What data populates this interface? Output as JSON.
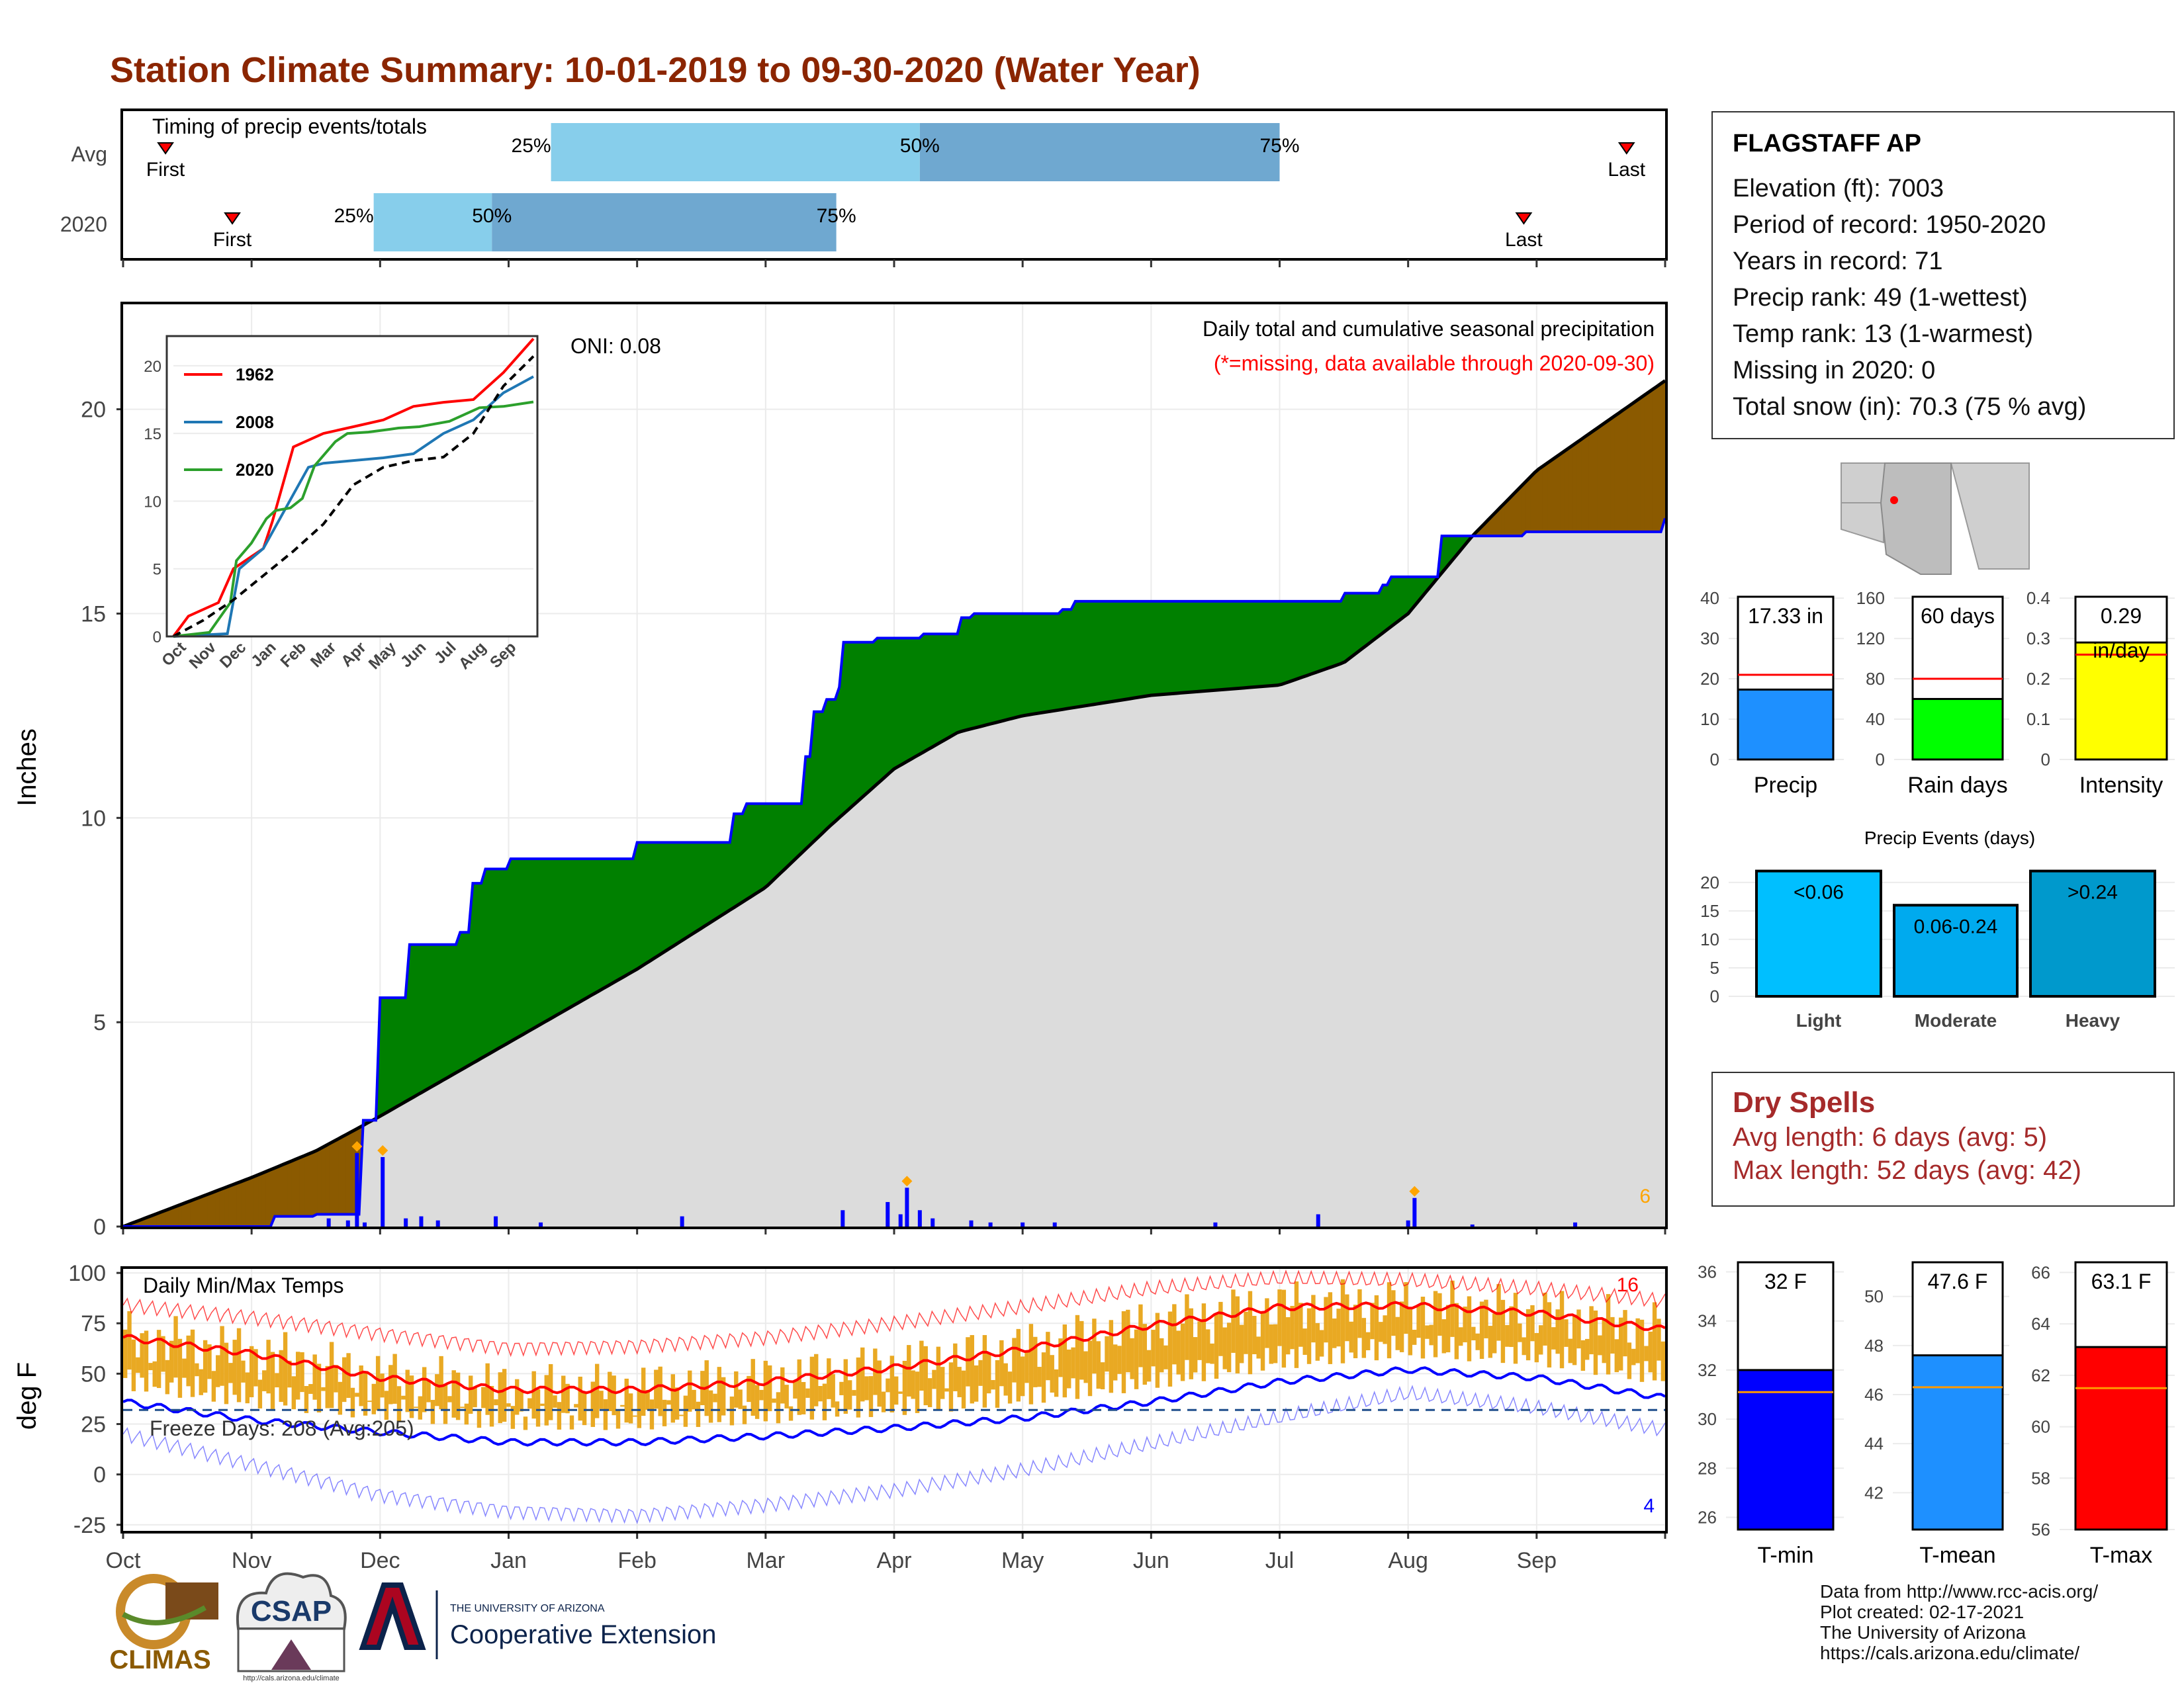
{
  "title": "Station Climate Summary: 10-01-2019 to 09-30-2020 (Water Year)",
  "colors": {
    "title": "#8b2500",
    "brown": "#8b5a00",
    "green": "#008000",
    "grey": "#dcdcdc",
    "blue_line": "#0000ff",
    "orange": "#ffa500",
    "red": "#ff0000",
    "bar_orange": "#e9a923"
  },
  "timing": {
    "label": "Timing of precip events/totals",
    "rows": [
      {
        "name": "Avg",
        "first_label": "First",
        "last_label": "Last",
        "first_month": 0.33,
        "last_month": 11.7,
        "p25": 3.33,
        "p50": 6.2,
        "p75": 9.0,
        "p25_label": "25%",
        "p50_label": "50%",
        "p75_label": "75%"
      },
      {
        "name": "2020",
        "first_label": "First",
        "last_label": "Last",
        "first_month": 0.85,
        "last_month": 10.9,
        "p25": 1.95,
        "p50": 2.87,
        "p75": 5.55,
        "p25_label": "25%",
        "p50_label": "50%",
        "p75_label": "75%"
      }
    ]
  },
  "chart_data": [
    {
      "type": "area",
      "title": "Daily total and cumulative seasonal precipitation",
      "subtitle": "(*=missing, data available through 2020-09-30)",
      "ylabel": "Inches",
      "ylim": [
        0,
        22.6
      ],
      "yticks": [
        0,
        5,
        10,
        15,
        20
      ],
      "xticks": [
        "Oct",
        "Nov",
        "Dec",
        "Jan",
        "Feb",
        "Mar",
        "Apr",
        "May",
        "Jun",
        "Jul",
        "Aug",
        "Sep"
      ],
      "annotation": "ONI: 0.08",
      "corner_count": "6",
      "series": [
        {
          "name": "",
          "kind": "average_cumulative",
          "x_month": [
            0,
            0.5,
            1,
            1.5,
            2,
            3,
            4,
            5,
            5.5,
            6,
            6.5,
            7,
            8,
            9,
            9.5,
            10,
            10.5,
            11,
            12
          ],
          "values": [
            0,
            0.6,
            1.2,
            1.85,
            2.7,
            4.5,
            6.3,
            8.3,
            9.8,
            11.2,
            12.1,
            12.5,
            13.0,
            13.25,
            13.8,
            15.0,
            16.9,
            18.5,
            20.7
          ]
        },
        {
          "name": "",
          "kind": "2020_cumulative",
          "x_month": [
            0,
            1.17,
            1.5,
            1.85,
            1.86,
            1.98,
            2.0,
            2.2,
            2.6,
            2.7,
            2.8,
            3.0,
            4.0,
            4.7,
            4.75,
            4.85,
            4.9,
            5.3,
            5.35,
            5.45,
            5.55,
            5.6,
            5.85,
            6.2,
            6.5,
            6.6,
            7.3,
            7.4,
            8.0,
            9.5,
            9.8,
            9.85,
            10.25,
            10.9,
            12
          ],
          "values": [
            0,
            0.25,
            0.3,
            2.0,
            2.6,
            2.9,
            5.6,
            6.9,
            7.2,
            8.4,
            8.75,
            9.0,
            9.4,
            9.4,
            10.1,
            10.35,
            10.35,
            11.5,
            12.6,
            12.9,
            13.2,
            14.3,
            14.4,
            14.5,
            14.9,
            15.0,
            15.1,
            15.3,
            15.3,
            15.5,
            15.7,
            15.9,
            16.9,
            17.0,
            17.33
          ]
        },
        {
          "name": "",
          "kind": "daily_precip",
          "x_month": [
            1.6,
            1.75,
            1.82,
            1.88,
            2.02,
            2.2,
            2.32,
            2.45,
            2.9,
            3.25,
            4.35,
            5.6,
            5.95,
            6.05,
            6.1,
            6.2,
            6.3,
            6.6,
            6.75,
            7.0,
            7.25,
            8.5,
            9.3,
            10.0,
            10.05,
            10.5,
            11.3
          ],
          "values": [
            0.2,
            0.15,
            1.8,
            0.1,
            1.7,
            0.2,
            0.25,
            0.15,
            0.25,
            0.1,
            0.25,
            0.4,
            0.6,
            0.3,
            0.95,
            0.4,
            0.2,
            0.15,
            0.1,
            0.1,
            0.1,
            0.1,
            0.3,
            0.15,
            0.7,
            0.05,
            0.1
          ]
        }
      ]
    },
    {
      "type": "line",
      "title": "",
      "ylim": [
        0,
        22
      ],
      "yticks": [
        0,
        5,
        10,
        15,
        20
      ],
      "xticks": [
        "Oct",
        "Nov",
        "Dec",
        "Jan",
        "Feb",
        "Mar",
        "Apr",
        "May",
        "Jun",
        "Jul",
        "Aug",
        "Sep"
      ],
      "series": [
        {
          "name": "1962",
          "color": "#ff0000",
          "x_month": [
            0,
            0.5,
            1.5,
            2,
            3,
            3.3,
            4,
            5,
            6,
            7,
            8,
            9,
            10,
            11,
            12
          ],
          "values": [
            0,
            1.5,
            2.5,
            5,
            6.5,
            8.5,
            14,
            15,
            15.5,
            16,
            17,
            17.3,
            17.5,
            19.5,
            22
          ]
        },
        {
          "name": "2008",
          "color": "#1f77b4",
          "x_month": [
            0,
            1.8,
            2.2,
            3,
            4,
            4.5,
            5,
            6,
            7,
            8,
            9,
            10,
            11,
            12
          ],
          "values": [
            0,
            0.2,
            5,
            6.5,
            10.5,
            12.5,
            12.8,
            13,
            13.2,
            13.5,
            15,
            16,
            18,
            19.2
          ]
        },
        {
          "name": "2020",
          "color": "#2ca02c",
          "x_month": [
            0,
            1.2,
            1.9,
            2.1,
            2.6,
            3.1,
            3.4,
            3.9,
            4.3,
            4.7,
            5.4,
            5.8,
            6.5,
            7.2,
            7.5,
            8.2,
            9.2,
            10.2,
            11,
            12
          ],
          "values": [
            0,
            0.3,
            2.5,
            5.6,
            6.9,
            8.7,
            9.3,
            9.5,
            10.2,
            12.6,
            14.4,
            15.0,
            15.1,
            15.3,
            15.4,
            15.5,
            15.9,
            16.9,
            17.0,
            17.33
          ]
        },
        {
          "name": "",
          "color": "#000000",
          "dashed": true,
          "x_month": [
            0,
            1,
            2,
            3,
            4,
            5,
            6,
            7,
            8,
            9,
            10,
            11,
            12
          ],
          "values": [
            0,
            1.2,
            2.7,
            4.5,
            6.3,
            8.3,
            11.2,
            12.5,
            13.0,
            13.25,
            15.0,
            18.5,
            20.7
          ]
        }
      ]
    },
    {
      "type": "line",
      "title": "Daily Min/Max Temps",
      "ylabel": "deg F",
      "ylim": [
        -28,
        102
      ],
      "yticks": [
        -25,
        0,
        25,
        50,
        75,
        100
      ],
      "xticks": [
        "Oct",
        "Nov",
        "Dec",
        "Jan",
        "Feb",
        "Mar",
        "Apr",
        "May",
        "Jun",
        "Jul",
        "Aug",
        "Sep"
      ],
      "freeze_text": "Freeze Days: 208 (Avg:205)",
      "count_high": "16",
      "count_low": "4",
      "freeze_line": 32,
      "series": [
        {
          "name": "",
          "kind": "avg_max",
          "x_month": [
            0,
            1,
            2,
            3,
            4,
            5,
            6,
            7,
            8,
            9,
            10,
            11,
            12
          ],
          "values": [
            68,
            60,
            48,
            42,
            42,
            46,
            53,
            62,
            74,
            83,
            84,
            80,
            72
          ]
        },
        {
          "name": "",
          "kind": "avg_min",
          "x_month": [
            0,
            1,
            2,
            3,
            4,
            5,
            6,
            7,
            8,
            9,
            10,
            11,
            12
          ],
          "values": [
            36,
            27,
            21,
            16,
            16,
            19,
            23,
            28,
            36,
            46,
            52,
            48,
            38
          ]
        },
        {
          "name": "",
          "kind": "record_high",
          "x_month": [
            0,
            1,
            2,
            3,
            4,
            5,
            6,
            7,
            8,
            9,
            10,
            11,
            12
          ],
          "values": [
            84,
            78,
            70,
            63,
            64,
            68,
            75,
            83,
            92,
            97,
            96,
            92,
            86
          ]
        },
        {
          "name": "",
          "kind": "record_low",
          "x_month": [
            0,
            1,
            2,
            3,
            4,
            5,
            6,
            7,
            8,
            9,
            10,
            11,
            12
          ],
          "values": [
            20,
            5,
            -10,
            -18,
            -20,
            -15,
            -8,
            2,
            15,
            28,
            40,
            33,
            22
          ]
        }
      ]
    },
    {
      "type": "bar",
      "name": "Precip",
      "categories": [
        "Precip"
      ],
      "values": [
        17.33
      ],
      "average": 21.0,
      "ylim": [
        0,
        41
      ],
      "yticks": [
        0,
        10,
        20,
        30,
        40
      ],
      "value_label": "17.33 in",
      "color": "#1e90ff"
    },
    {
      "type": "bar",
      "name": "Rain days",
      "categories": [
        "Rain days"
      ],
      "values": [
        60
      ],
      "average": 80,
      "ylim": [
        0,
        164
      ],
      "yticks": [
        0,
        40,
        80,
        120,
        160
      ],
      "value_label": "60 days",
      "color": "#00ff00"
    },
    {
      "type": "bar",
      "name": "Intensity",
      "categories": [
        "Intensity"
      ],
      "values": [
        0.29
      ],
      "average": 0.26,
      "ylim": [
        0,
        0.41
      ],
      "yticks": [
        0.0,
        0.1,
        0.2,
        0.3,
        0.4
      ],
      "value_label": "0.29",
      "value_label2": "in/day",
      "color": "#ffff00"
    },
    {
      "type": "bar",
      "title": "Precip Events (days)",
      "categories": [
        "Light",
        "Moderate",
        "Heavy"
      ],
      "values": [
        22,
        16,
        22
      ],
      "labels": [
        "<0.06",
        "0.06-0.24",
        ">0.24"
      ],
      "ylim": [
        0,
        23
      ],
      "yticks": [
        0,
        5,
        10,
        15,
        20
      ],
      "colors": [
        "#00bfff",
        "#00aaee",
        "#0099cc"
      ]
    },
    {
      "type": "bar",
      "name": "T-min",
      "categories": [
        "T-min"
      ],
      "values": [
        32
      ],
      "average": 31.1,
      "ylim": [
        25.5,
        36.5
      ],
      "yticks": [
        26,
        28,
        30,
        32,
        34,
        36
      ],
      "value_label": "32 F",
      "color": "#0000ff"
    },
    {
      "type": "bar",
      "name": "T-mean",
      "categories": [
        "T-mean"
      ],
      "values": [
        47.6
      ],
      "average": 46.3,
      "ylim": [
        40.5,
        51.5
      ],
      "yticks": [
        42,
        44,
        46,
        48,
        50
      ],
      "value_label": "47.6 F",
      "color": "#1e90ff"
    },
    {
      "type": "bar",
      "name": "T-max",
      "categories": [
        "T-max"
      ],
      "values": [
        63.1
      ],
      "average": 61.5,
      "ylim": [
        56,
        66.5
      ],
      "yticks": [
        56,
        58,
        60,
        62,
        64,
        66
      ],
      "value_label": "63.1 F",
      "color": "#ff0000"
    }
  ],
  "station": {
    "name": "FLAGSTAFF AP",
    "lines": [
      "Elevation (ft): 7003",
      "Period of record: 1950-2020",
      "Years in record: 71",
      "Precip rank: 49 (1-wettest)",
      "Temp rank: 13 (1-warmest)",
      "Missing in 2020: 0",
      "Total snow (in): 70.3 (75 % avg)"
    ]
  },
  "dry_spells": {
    "title": "Dry Spells",
    "avg": "Avg length: 6 days (avg: 5)",
    "max": "Max length: 52 days (avg: 42)"
  },
  "logos": {
    "climas": "CLIMAS",
    "csap": "CSAP",
    "csap_url": "http://cals.arizona.edu/climate",
    "ua_small": "THE UNIVERSITY OF ARIZONA",
    "ua_large": "Cooperative Extension"
  },
  "credits": [
    "Data from http://www.rcc-acis.org/",
    "Plot created: 02-17-2021",
    "The University of Arizona",
    "https://cals.arizona.edu/climate/"
  ]
}
